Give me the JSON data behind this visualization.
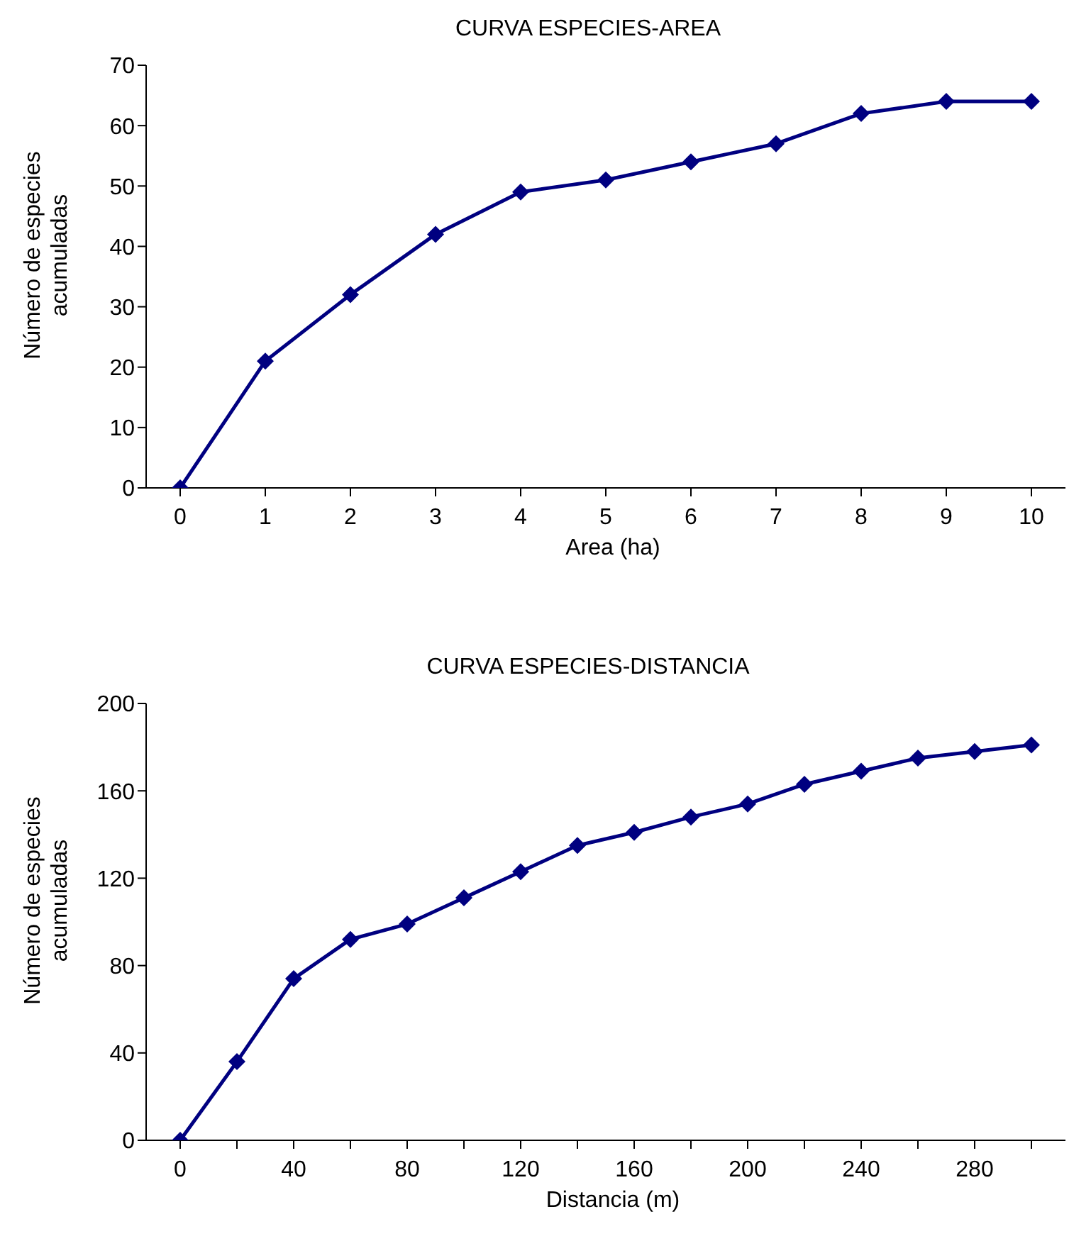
{
  "chart_data": [
    {
      "type": "line",
      "title": "CURVA ESPECIES-AREA",
      "xlabel": "Area (ha)",
      "ylabel": "Número de especies acumuladas",
      "categories": [
        "0",
        "1",
        "2",
        "3",
        "4",
        "5",
        "6",
        "7",
        "8",
        "9",
        "10"
      ],
      "series": [
        {
          "color": "#000080",
          "values": [
            0,
            21,
            32,
            42,
            49,
            51,
            54,
            57,
            62,
            64,
            64
          ]
        }
      ],
      "ylim": [
        0,
        70
      ],
      "yticks": [
        0,
        10,
        20,
        30,
        40,
        50,
        60,
        70
      ],
      "grid": false,
      "legend": false,
      "marker": "diamond",
      "line_style": "solid"
    },
    {
      "type": "line",
      "title": "CURVA ESPECIES-DISTANCIA",
      "xlabel": "Distancia (m)",
      "ylabel": "Número de especies acumuladas",
      "categories": [
        "0",
        null,
        "40",
        null,
        "80",
        null,
        "120",
        null,
        "160",
        null,
        "200",
        null,
        "240",
        null,
        "280",
        null
      ],
      "series": [
        {
          "color": "#000080",
          "values": [
            0,
            36,
            74,
            92,
            99,
            111,
            123,
            135,
            141,
            148,
            154,
            163,
            169,
            175,
            178,
            181
          ]
        }
      ],
      "ylim": [
        0,
        200
      ],
      "yticks": [
        0,
        40,
        80,
        120,
        160,
        200
      ],
      "grid": false,
      "legend": false,
      "marker": "diamond",
      "line_style": "solid"
    }
  ]
}
